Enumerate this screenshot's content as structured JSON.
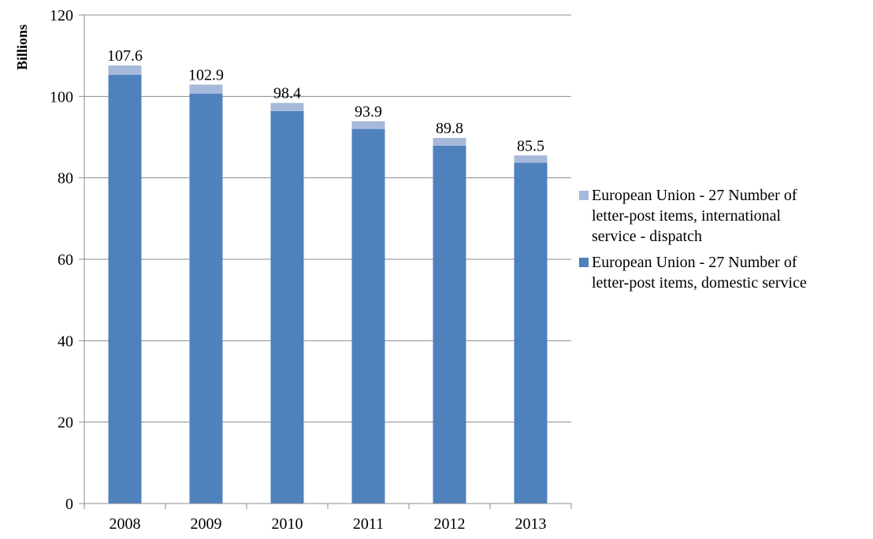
{
  "chart_data": {
    "type": "bar",
    "stacked": true,
    "categories": [
      "2008",
      "2009",
      "2010",
      "2011",
      "2012",
      "2013"
    ],
    "series": [
      {
        "name": "European Union - 27 Number of letter-post items, domestic service",
        "values": [
          105.3,
          100.7,
          96.4,
          92.0,
          87.9,
          83.7
        ],
        "color": "#4F81BD"
      },
      {
        "name": "European Union - 27 Number of letter-post items, international service - dispatch",
        "values": [
          2.3,
          2.2,
          2.0,
          1.9,
          1.9,
          1.8
        ],
        "color": "#A7B9DB"
      }
    ],
    "totals": [
      "107.6",
      "102.9",
      "98.4",
      "93.9",
      "89.8",
      "85.5"
    ],
    "ylabel": "Billions",
    "ylim": [
      0,
      120
    ],
    "yticks": [
      "0",
      "20",
      "40",
      "60",
      "80",
      "100",
      "120"
    ],
    "grid": true,
    "legend": {
      "position": "right",
      "entries": [
        {
          "lines": [
            "European Union - 27 Number of",
            "letter-post items, international",
            "service - dispatch"
          ],
          "color": "#A7B9DB"
        },
        {
          "lines": [
            "European Union - 27 Number of",
            "letter-post items, domestic service"
          ],
          "color": "#4F81BD"
        }
      ]
    }
  }
}
